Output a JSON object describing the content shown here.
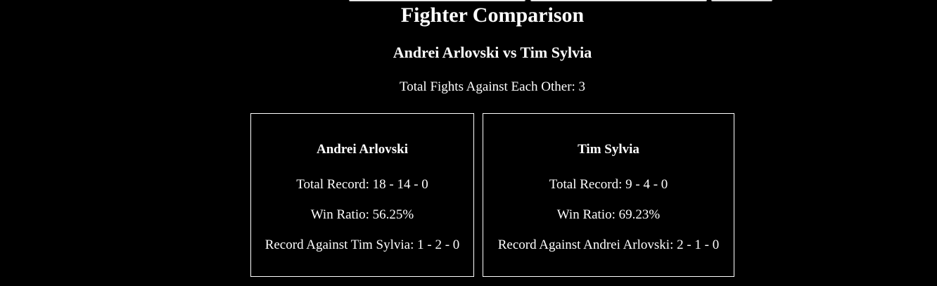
{
  "page": {
    "title": "Fighter Comparison",
    "matchup": "Andrei Arlovski vs Tim Sylvia",
    "total_fights": "Total Fights Against Each Other: 3"
  },
  "fighters": [
    {
      "name": "Andrei Arlovski",
      "total_record": "Total Record: 18 - 14 - 0",
      "win_ratio": "Win Ratio: 56.25%",
      "record_against": "Record Against Tim Sylvia: 1 - 2 - 0"
    },
    {
      "name": "Tim Sylvia",
      "total_record": "Total Record: 9 - 4 - 0",
      "win_ratio": "Win Ratio: 69.23%",
      "record_against": "Record Against Andrei Arlovski: 2 - 1 - 0"
    }
  ]
}
